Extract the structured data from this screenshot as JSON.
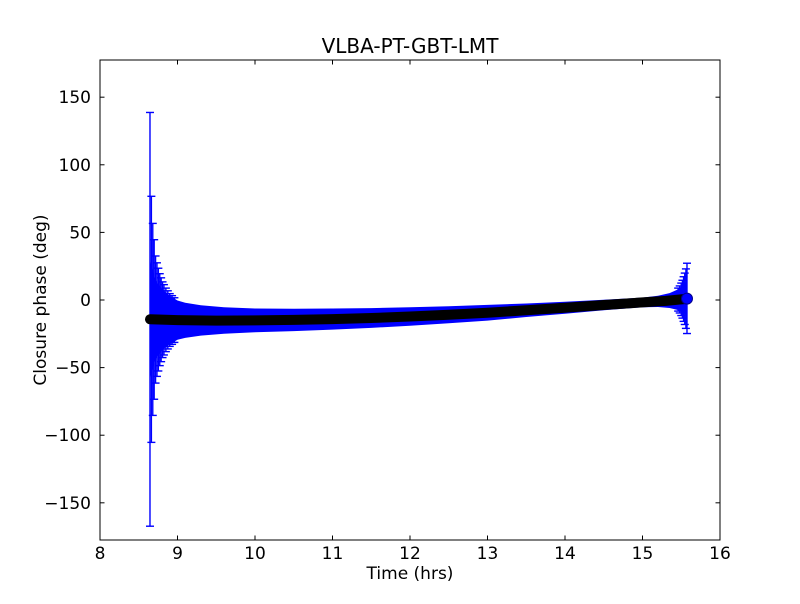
{
  "figure": {
    "title": "VLBA-PT-GBT-LMT",
    "xlabel": "Time (hrs)",
    "ylabel": "Closure phase (deg)",
    "background": "#ffffff",
    "frame_color": "#000000"
  },
  "chart_data": {
    "type": "scatter",
    "title": "VLBA-PT-GBT-LMT",
    "xlabel": "Time (hrs)",
    "ylabel": "Closure phase (deg)",
    "xlim": [
      8,
      16
    ],
    "ylim": [
      -177.5,
      177.5
    ],
    "grid": false,
    "legend": "none",
    "xticks": [
      {
        "v": 8,
        "label": "8"
      },
      {
        "v": 9,
        "label": "9"
      },
      {
        "v": 10,
        "label": "10"
      },
      {
        "v": 11,
        "label": "11"
      },
      {
        "v": 12,
        "label": "12"
      },
      {
        "v": 13,
        "label": "13"
      },
      {
        "v": 14,
        "label": "14"
      },
      {
        "v": 15,
        "label": "15"
      },
      {
        "v": 16,
        "label": "16"
      }
    ],
    "yticks": [
      {
        "v": 150,
        "label": "150"
      },
      {
        "v": 100,
        "label": "100"
      },
      {
        "v": 50,
        "label": "50"
      },
      {
        "v": 0,
        "label": "0"
      },
      {
        "v": -50,
        "label": "−50"
      },
      {
        "v": -100,
        "label": "−100"
      },
      {
        "v": -150,
        "label": "−150"
      }
    ],
    "series": [
      {
        "name": "observed-closure-phase-errorband",
        "color": "#0000ff",
        "style": "error-band",
        "comment": "points are [t_hrs, phase_deg, halfwidth_err_deg] of the dense overlapping errorbar band",
        "points": [
          [
            8.645,
            -14.3,
            45
          ],
          [
            8.66,
            -14.35,
            40
          ],
          [
            8.68,
            -14.4,
            36
          ],
          [
            8.7,
            -14.45,
            32
          ],
          [
            8.73,
            -14.5,
            28
          ],
          [
            8.76,
            -14.55,
            25.5
          ],
          [
            8.8,
            -14.6,
            23
          ],
          [
            8.85,
            -14.7,
            20
          ],
          [
            8.9,
            -14.8,
            18
          ],
          [
            9.0,
            -14.9,
            14.5
          ],
          [
            9.1,
            -15.0,
            13
          ],
          [
            9.3,
            -15.1,
            11.2
          ],
          [
            9.6,
            -15.2,
            9.8
          ],
          [
            10.0,
            -15.1,
            8.8
          ],
          [
            10.5,
            -14.7,
            8.3
          ],
          [
            11.0,
            -14.1,
            7.8
          ],
          [
            11.5,
            -13.3,
            7.3
          ],
          [
            12.0,
            -12.2,
            6.8
          ],
          [
            12.5,
            -10.9,
            6.3
          ],
          [
            13.0,
            -9.4,
            5.8
          ],
          [
            13.5,
            -7.6,
            5.0
          ],
          [
            14.0,
            -5.7,
            4.4
          ],
          [
            14.5,
            -3.7,
            3.9
          ],
          [
            15.0,
            -1.8,
            3.6
          ],
          [
            15.2,
            -1.0,
            4.2
          ],
          [
            15.35,
            -0.4,
            5.5
          ],
          [
            15.45,
            0.2,
            7.5
          ],
          [
            15.52,
            0.7,
            10.0
          ],
          [
            15.574,
            1.2,
            13.0
          ]
        ]
      },
      {
        "name": "observed-closure-phase-errorbars-start",
        "color": "#0000ff",
        "style": "errorbar-with-caps",
        "points": [
          [
            8.645,
            -14.3,
            153
          ],
          [
            8.663,
            -14.3,
            91
          ],
          [
            8.681,
            -14.35,
            71
          ],
          [
            8.699,
            -14.4,
            59
          ],
          [
            8.717,
            -14.45,
            47
          ],
          [
            8.735,
            -14.5,
            42
          ],
          [
            8.753,
            -14.5,
            38
          ],
          [
            8.771,
            -14.55,
            34
          ],
          [
            8.789,
            -14.6,
            31
          ],
          [
            8.807,
            -14.6,
            28
          ],
          [
            8.825,
            -14.65,
            26
          ],
          [
            8.85,
            -14.7,
            23.5
          ],
          [
            8.875,
            -14.7,
            21.5
          ],
          [
            8.9,
            -14.8,
            19.5
          ],
          [
            8.93,
            -14.8,
            18
          ],
          [
            8.96,
            -14.85,
            16.5
          ]
        ]
      },
      {
        "name": "observed-closure-phase-errorbars-end",
        "color": "#0000ff",
        "style": "errorbar-with-caps",
        "points": [
          [
            15.46,
            0.3,
            8.5
          ],
          [
            15.48,
            0.4,
            10
          ],
          [
            15.5,
            0.5,
            12
          ],
          [
            15.515,
            0.6,
            14
          ],
          [
            15.53,
            0.7,
            16.5
          ],
          [
            15.545,
            0.9,
            19
          ],
          [
            15.56,
            1.0,
            22
          ],
          [
            15.574,
            1.2,
            26
          ]
        ]
      },
      {
        "name": "model-closure-phase",
        "color": "#000000",
        "style": "thick-dot-curve",
        "comment": "points are [t_hrs, phase_deg] of the dense black marker curve",
        "points": [
          [
            8.645,
            -14.3
          ],
          [
            9.0,
            -14.9
          ],
          [
            9.5,
            -15.2
          ],
          [
            10.0,
            -15.1
          ],
          [
            10.5,
            -14.7
          ],
          [
            11.0,
            -14.1
          ],
          [
            11.5,
            -13.3
          ],
          [
            12.0,
            -12.2
          ],
          [
            12.5,
            -10.9
          ],
          [
            13.0,
            -9.4
          ],
          [
            13.5,
            -7.6
          ],
          [
            14.0,
            -5.7
          ],
          [
            14.5,
            -3.7
          ],
          [
            15.0,
            -1.8
          ],
          [
            15.3,
            -0.7
          ],
          [
            15.53,
            0.7
          ]
        ]
      },
      {
        "name": "observed-last-point-marker",
        "color": "#0000ff",
        "style": "circle-marker",
        "points": [
          [
            15.574,
            1.0
          ]
        ]
      }
    ]
  }
}
